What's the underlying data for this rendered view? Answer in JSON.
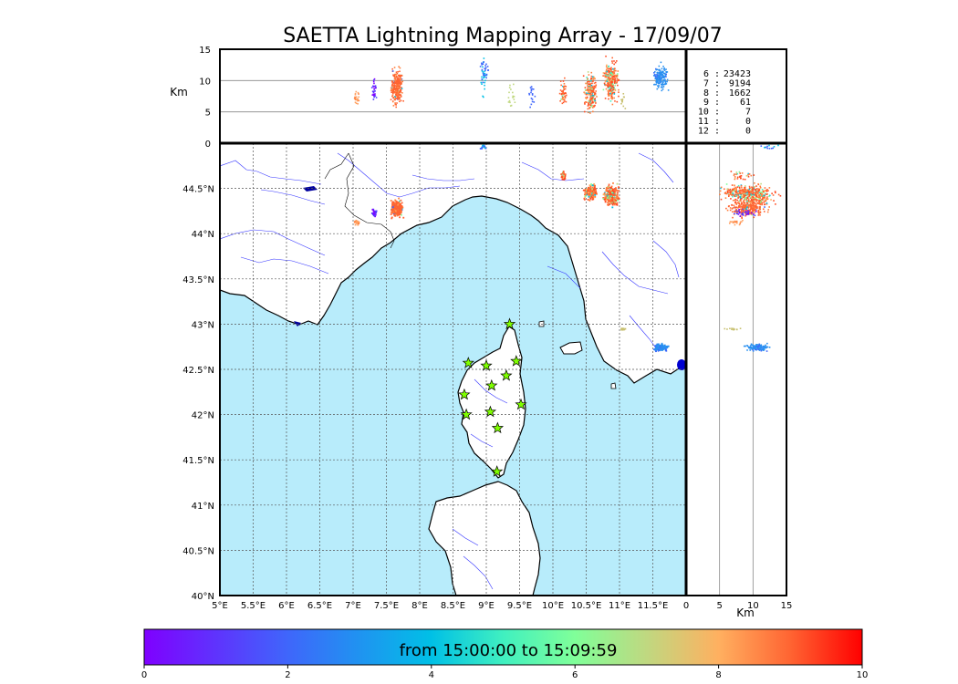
{
  "title": "SAETTA Lightning Mapping Array - 17/09/07",
  "altitude_panel": {
    "ylabel": "Km",
    "yticks": [
      "15",
      "10",
      "5",
      "0"
    ],
    "guide_lines_km": [
      5,
      10
    ]
  },
  "side_panel": {
    "xlabel": "Km",
    "xticks": [
      "0",
      "5",
      "10",
      "15"
    ]
  },
  "map": {
    "lon_ticks": [
      "5°E",
      "5.5°E",
      "6°E",
      "6.5°E",
      "7°E",
      "7.5°E",
      "8°E",
      "8.5°E",
      "9°E",
      "9.5°E",
      "10°E",
      "10.5°E",
      "11°E",
      "11.5°E"
    ],
    "lat_ticks": [
      "44.5°N",
      "44°N",
      "43.5°N",
      "43°N",
      "42.5°N",
      "42°N",
      "41.5°N",
      "41°N",
      "40.5°N",
      "40°N"
    ],
    "lon_range": [
      5,
      12
    ],
    "lat_range": [
      40,
      45
    ],
    "sea_color": "#b8ecfb",
    "land_color": "#ffffff",
    "river_color": "#3333ff"
  },
  "stations": [
    {
      "lon": 9.35,
      "lat": 43.0
    },
    {
      "lon": 8.73,
      "lat": 42.57
    },
    {
      "lon": 9.0,
      "lat": 42.54
    },
    {
      "lon": 9.45,
      "lat": 42.59
    },
    {
      "lon": 9.3,
      "lat": 42.43
    },
    {
      "lon": 9.08,
      "lat": 42.32
    },
    {
      "lon": 8.67,
      "lat": 42.22
    },
    {
      "lon": 9.52,
      "lat": 42.11
    },
    {
      "lon": 8.7,
      "lat": 42.0
    },
    {
      "lon": 9.06,
      "lat": 42.03
    },
    {
      "lon": 9.17,
      "lat": 41.85
    },
    {
      "lon": 9.16,
      "lat": 41.37
    }
  ],
  "counts": [
    {
      "label": "6 :",
      "value": "23423",
      "color": "#000000"
    },
    {
      "label": "7 :",
      "value": "9194",
      "color": "#ff0000"
    },
    {
      "label": "8 :",
      "value": "1662",
      "color": "#000000"
    },
    {
      "label": "9 :",
      "value": "61",
      "color": "#000000"
    },
    {
      "label": "10 :",
      "value": "7",
      "color": "#000000"
    },
    {
      "label": "11 :",
      "value": "0",
      "color": "#000000"
    },
    {
      "label": "12 :",
      "value": "0",
      "color": "#000000"
    }
  ],
  "colorbar": {
    "label": "from 15:00:00 to 15:09:59",
    "ticks": [
      "0",
      "2",
      "4",
      "6",
      "8",
      "10"
    ]
  }
}
